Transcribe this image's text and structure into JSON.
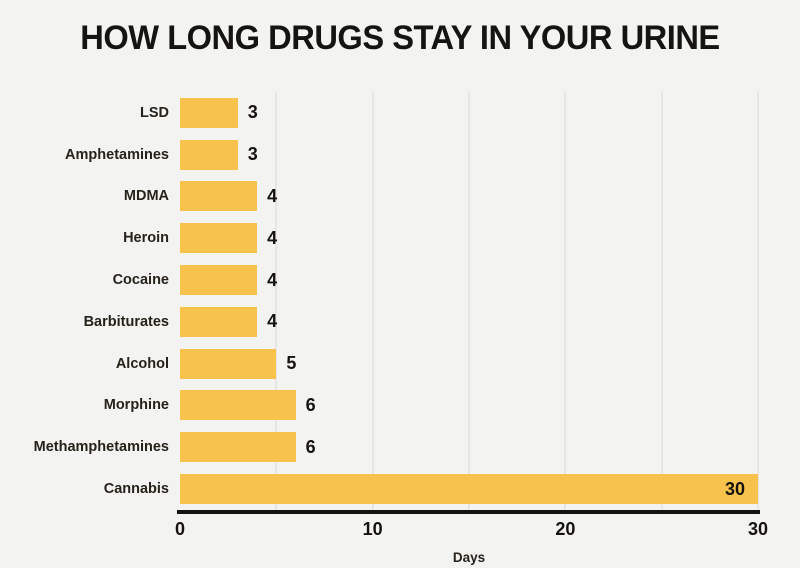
{
  "title": "HOW LONG DRUGS STAY IN YOUR URINE",
  "chart_data": {
    "type": "bar",
    "orientation": "horizontal",
    "title": "HOW LONG DRUGS STAY IN YOUR URINE",
    "categories": [
      "LSD",
      "Amphetamines",
      "MDMA",
      "Heroin",
      "Cocaine",
      "Barbiturates",
      "Alcohol",
      "Morphine",
      "Methamphetamines",
      "Cannabis"
    ],
    "values": [
      3,
      3,
      4,
      4,
      4,
      4,
      5,
      6,
      6,
      30
    ],
    "xlabel": "Days",
    "ylabel": "",
    "xlim": [
      0,
      30
    ],
    "x_ticks": [
      0,
      10,
      20,
      30
    ],
    "gridlines": [
      5,
      10,
      15,
      20,
      25,
      30
    ],
    "grid": true,
    "legend": false,
    "value_labels_shown": true,
    "colors": {
      "bar": "#f7c34d",
      "background": "#f3f3f2",
      "gridline": "#e7e6e3",
      "axis": "#14130f",
      "text": "#16130e"
    }
  }
}
